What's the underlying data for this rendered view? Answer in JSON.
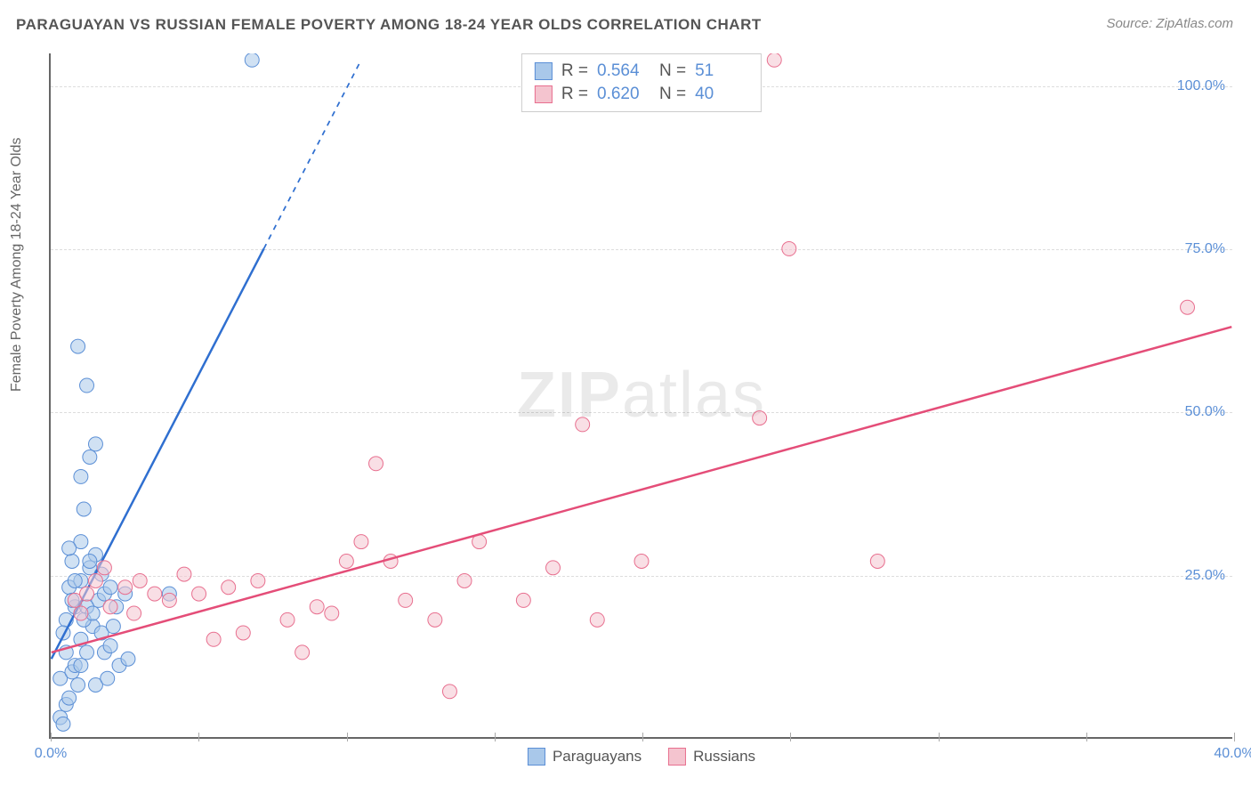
{
  "title": "PARAGUAYAN VS RUSSIAN FEMALE POVERTY AMONG 18-24 YEAR OLDS CORRELATION CHART",
  "source_label": "Source: ZipAtlas.com",
  "y_axis_label": "Female Poverty Among 18-24 Year Olds",
  "watermark": {
    "bold": "ZIP",
    "rest": "atlas"
  },
  "chart": {
    "type": "scatter",
    "xlim": [
      0,
      40
    ],
    "ylim": [
      0,
      105
    ],
    "background_color": "#ffffff",
    "grid_color": "#dddddd",
    "axis_color": "#666666",
    "x_ticks": [
      0,
      5,
      10,
      15,
      20,
      25,
      30,
      35,
      40
    ],
    "x_tick_labels_shown": {
      "0": "0.0%",
      "40": "40.0%"
    },
    "y_ticks": [
      25,
      50,
      75,
      100
    ],
    "y_tick_labels": {
      "25": "25.0%",
      "50": "50.0%",
      "75": "75.0%",
      "100": "100.0%"
    },
    "marker_radius": 8,
    "marker_opacity": 0.55,
    "line_width": 2.5,
    "series": [
      {
        "name": "Paraguayans",
        "color_fill": "#a9c8ea",
        "color_stroke": "#5b8fd6",
        "line_color": "#2f6fd0",
        "R": "0.564",
        "N": "51",
        "trend": {
          "x1": 0,
          "y1": 12,
          "x2": 7.2,
          "y2": 75
        },
        "trend_dashed_ext": {
          "x1": 7.2,
          "y1": 75,
          "x2": 10.5,
          "y2": 104
        },
        "points": [
          [
            0.3,
            3
          ],
          [
            0.4,
            2
          ],
          [
            0.5,
            5
          ],
          [
            0.6,
            6
          ],
          [
            0.3,
            9
          ],
          [
            0.7,
            10
          ],
          [
            0.8,
            11
          ],
          [
            1.0,
            11
          ],
          [
            1.2,
            13
          ],
          [
            1.0,
            15
          ],
          [
            1.4,
            17
          ],
          [
            0.5,
            18
          ],
          [
            0.8,
            20
          ],
          [
            1.6,
            21
          ],
          [
            1.8,
            22
          ],
          [
            2.0,
            23
          ],
          [
            0.6,
            23
          ],
          [
            1.0,
            24
          ],
          [
            1.3,
            26
          ],
          [
            1.5,
            28
          ],
          [
            0.7,
            27
          ],
          [
            1.2,
            20
          ],
          [
            1.7,
            25
          ],
          [
            2.2,
            20
          ],
          [
            1.0,
            30
          ],
          [
            1.1,
            35
          ],
          [
            1.0,
            40
          ],
          [
            1.3,
            43
          ],
          [
            1.5,
            45
          ],
          [
            1.2,
            54
          ],
          [
            0.9,
            60
          ],
          [
            6.8,
            104
          ],
          [
            0.5,
            13
          ],
          [
            0.9,
            8
          ],
          [
            1.8,
            13
          ],
          [
            2.0,
            14
          ],
          [
            2.3,
            11
          ],
          [
            2.6,
            12
          ],
          [
            1.5,
            8
          ],
          [
            1.9,
            9
          ],
          [
            2.5,
            22
          ],
          [
            4.0,
            22
          ],
          [
            0.4,
            16
          ],
          [
            0.6,
            29
          ],
          [
            1.1,
            18
          ],
          [
            1.4,
            19
          ],
          [
            1.7,
            16
          ],
          [
            2.1,
            17
          ],
          [
            0.8,
            24
          ],
          [
            1.3,
            27
          ],
          [
            0.7,
            21
          ]
        ]
      },
      {
        "name": "Russians",
        "color_fill": "#f4c4cf",
        "color_stroke": "#e86f8f",
        "line_color": "#e44d78",
        "R": "0.620",
        "N": "40",
        "trend": {
          "x1": 0,
          "y1": 13,
          "x2": 40,
          "y2": 63
        },
        "points": [
          [
            0.8,
            21
          ],
          [
            1.2,
            22
          ],
          [
            1.5,
            24
          ],
          [
            1.8,
            26
          ],
          [
            2.0,
            20
          ],
          [
            2.5,
            23
          ],
          [
            3.0,
            24
          ],
          [
            3.5,
            22
          ],
          [
            4.0,
            21
          ],
          [
            4.5,
            25
          ],
          [
            5.0,
            22
          ],
          [
            5.5,
            15
          ],
          [
            6.0,
            23
          ],
          [
            7.0,
            24
          ],
          [
            8.0,
            18
          ],
          [
            8.5,
            13
          ],
          [
            9.0,
            20
          ],
          [
            9.5,
            19
          ],
          [
            10.0,
            27
          ],
          [
            10.5,
            30
          ],
          [
            11.0,
            42
          ],
          [
            11.5,
            27
          ],
          [
            12.0,
            21
          ],
          [
            13.0,
            18
          ],
          [
            13.5,
            7
          ],
          [
            14.0,
            24
          ],
          [
            14.5,
            30
          ],
          [
            16.0,
            21
          ],
          [
            17.0,
            26
          ],
          [
            18.0,
            48
          ],
          [
            18.5,
            18
          ],
          [
            20.0,
            27
          ],
          [
            24.0,
            49
          ],
          [
            24.5,
            104
          ],
          [
            25.0,
            75
          ],
          [
            28.0,
            27
          ],
          [
            38.5,
            66
          ],
          [
            1.0,
            19
          ],
          [
            2.8,
            19
          ],
          [
            6.5,
            16
          ]
        ]
      }
    ]
  },
  "legend_labels": {
    "r_prefix": "R = ",
    "n_prefix": "N = "
  }
}
